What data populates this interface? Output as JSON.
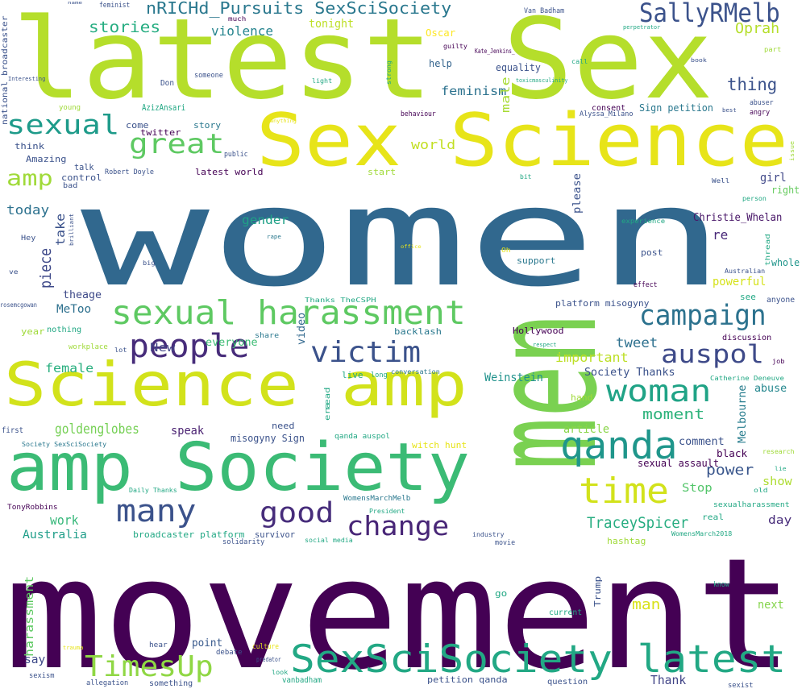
{
  "words": [
    {
      "text": "movement",
      "color": "#440154"
    },
    {
      "text": "women",
      "color": "#31688e"
    },
    {
      "text": "latest Sex",
      "color": "#b5de2b"
    },
    {
      "text": "men",
      "color": "#7ad151"
    },
    {
      "text": "Sex Science",
      "color": "#e7e419"
    },
    {
      "text": "amp Society",
      "color": "#3bbb75"
    },
    {
      "text": "Science amp",
      "color": "#d2e21b"
    },
    {
      "text": "SexSciSociety latest",
      "color": "#22a884"
    },
    {
      "text": "sexual harassment",
      "color": "#5ec962"
    },
    {
      "text": "people",
      "color": "#472c7a"
    },
    {
      "text": "victim",
      "color": "#3b528b"
    },
    {
      "text": "qanda",
      "color": "#1f968b"
    },
    {
      "text": "time",
      "color": "#d2e21b"
    },
    {
      "text": "woman",
      "color": "#20a386"
    },
    {
      "text": "campaign",
      "color": "#2c728e"
    },
    {
      "text": "auspol",
      "color": "#3e4a89"
    },
    {
      "text": "many",
      "color": "#3b528b"
    },
    {
      "text": "good",
      "color": "#472d7b"
    },
    {
      "text": "change",
      "color": "#482677"
    },
    {
      "text": "TimesUp",
      "color": "#8fd744"
    },
    {
      "text": "sexual",
      "color": "#1e9b8a"
    },
    {
      "text": "great",
      "color": "#5ec962"
    },
    {
      "text": "SallyRMelb",
      "color": "#3b528b"
    },
    {
      "text": "nRICHd_Pursuits SexSciSociety",
      "color": "#2a788e"
    },
    {
      "text": "amp",
      "color": "#a0da39"
    },
    {
      "text": "stories",
      "color": "#26ad81"
    },
    {
      "text": "violence",
      "color": "#25848e"
    },
    {
      "text": "Oprah",
      "color": "#b5de2b"
    },
    {
      "text": "thing",
      "color": "#3b528b"
    },
    {
      "text": "feminism",
      "color": "#2c728e"
    },
    {
      "text": "piece",
      "color": "#3e4989"
    },
    {
      "text": "goldenglobes",
      "color": "#75d054"
    },
    {
      "text": "TraceySpicer",
      "color": "#27ad81"
    },
    {
      "text": "tweet",
      "color": "#2d708e"
    },
    {
      "text": "moment",
      "color": "#2eb37c"
    },
    {
      "text": "power",
      "color": "#39568c"
    },
    {
      "text": "world",
      "color": "#c2df23"
    },
    {
      "text": "today",
      "color": "#2c718e"
    },
    {
      "text": "take",
      "color": "#3b528b"
    },
    {
      "text": "gender",
      "color": "#1fa187"
    },
    {
      "text": "re",
      "color": "#482878"
    },
    {
      "text": "female",
      "color": "#29af7f"
    },
    {
      "text": "work",
      "color": "#35b779"
    },
    {
      "text": "Australia",
      "color": "#1f9e89"
    },
    {
      "text": "man",
      "color": "#d8e219"
    },
    {
      "text": "point",
      "color": "#38598c"
    },
    {
      "text": "say",
      "color": "#3e4a89"
    },
    {
      "text": "Thank",
      "color": "#414487"
    },
    {
      "text": "important",
      "color": "#bddf26"
    },
    {
      "text": "Stop",
      "color": "#52c569"
    },
    {
      "text": "show",
      "color": "#addc30"
    },
    {
      "text": "day",
      "color": "#472c7a"
    },
    {
      "text": "next",
      "color": "#84d44b"
    },
    {
      "text": "girl",
      "color": "#3f4788"
    },
    {
      "text": "right",
      "color": "#65cb5e"
    },
    {
      "text": "powerful",
      "color": "#d5e21a"
    },
    {
      "text": "whole",
      "color": "#1f958b"
    },
    {
      "text": "abuse",
      "color": "#24878e"
    },
    {
      "text": "Melbourne",
      "color": "#287d8e"
    },
    {
      "text": "please",
      "color": "#3b528b"
    },
    {
      "text": "harassment",
      "color": "#5ec962"
    },
    {
      "text": "theage",
      "color": "#3e4a89"
    },
    {
      "text": "MeToo",
      "color": "#2d708e"
    },
    {
      "text": "New",
      "color": "#414487"
    },
    {
      "text": "everyone",
      "color": "#3dbc74"
    },
    {
      "text": "male",
      "color": "#a8db34"
    },
    {
      "text": "article",
      "color": "#89d548"
    },
    {
      "text": "speak",
      "color": "#481f70"
    },
    {
      "text": "Weinstein",
      "color": "#20928c"
    },
    {
      "text": "Society Thanks",
      "color": "#3b528b"
    },
    {
      "text": "comment",
      "color": "#3b528b"
    },
    {
      "text": "black",
      "color": "#440154"
    },
    {
      "text": "sexual assault",
      "color": "#440154"
    },
    {
      "text": "Christie_Whelan",
      "color": "#481668"
    },
    {
      "text": "video",
      "color": "#31688e"
    },
    {
      "text": "misogyny Sign",
      "color": "#3b528b"
    },
    {
      "text": "tonight",
      "color": "#bddf26"
    },
    {
      "text": "Oscar",
      "color": "#fde725"
    },
    {
      "text": "help",
      "color": "#33638d"
    },
    {
      "text": "equality",
      "color": "#3b528b"
    },
    {
      "text": "consent",
      "color": "#440154"
    },
    {
      "text": "Sign petition",
      "color": "#2a788e"
    },
    {
      "text": "angry",
      "color": "#440154"
    },
    {
      "text": "abuser",
      "color": "#3b528b"
    },
    {
      "text": "Alyssa_Milano",
      "color": "#3b528b"
    },
    {
      "text": "story",
      "color": "#2a788e"
    },
    {
      "text": "come",
      "color": "#3b528b"
    },
    {
      "text": "twitter",
      "color": "#440154"
    },
    {
      "text": "think",
      "color": "#3b528b"
    },
    {
      "text": "Amazing",
      "color": "#3b528b"
    },
    {
      "text": "talk",
      "color": "#3b528b"
    },
    {
      "text": "control",
      "color": "#3b528b"
    },
    {
      "text": "bad",
      "color": "#3b528b"
    },
    {
      "text": "Robert Doyle",
      "color": "#3b528b"
    },
    {
      "text": "latest world",
      "color": "#440154"
    },
    {
      "text": "start",
      "color": "#a0da39"
    },
    {
      "text": "public",
      "color": "#3b528b"
    },
    {
      "text": "AzizAnsari",
      "color": "#22a884"
    },
    {
      "text": "someone",
      "color": "#3b528b"
    },
    {
      "text": "Don",
      "color": "#3b528b"
    },
    {
      "text": "behaviour",
      "color": "#440154"
    },
    {
      "text": "Kate_Jenkins_",
      "color": "#440154"
    },
    {
      "text": "Van Badham",
      "color": "#3b528b"
    },
    {
      "text": "feminist",
      "color": "#3b528b"
    },
    {
      "text": "much",
      "color": "#440154"
    },
    {
      "text": "guilty",
      "color": "#440154"
    },
    {
      "text": "post",
      "color": "#3b528b"
    },
    {
      "text": "support",
      "color": "#2a788e"
    },
    {
      "text": "effect",
      "color": "#440154"
    },
    {
      "text": "platform misogyny",
      "color": "#3b528b"
    },
    {
      "text": "Hollywood",
      "color": "#440154"
    },
    {
      "text": "backlash",
      "color": "#2a788e"
    },
    {
      "text": "discussion",
      "color": "#440154"
    },
    {
      "text": "anyone",
      "color": "#3b528b"
    },
    {
      "text": "see",
      "color": "#22a884"
    },
    {
      "text": "Australian",
      "color": "#3b528b"
    },
    {
      "text": "job",
      "color": "#440154"
    },
    {
      "text": "hand",
      "color": "#a0da39"
    },
    {
      "text": "Catherine Deneuve",
      "color": "#22a884"
    },
    {
      "text": "live",
      "color": "#22a884"
    },
    {
      "text": "long",
      "color": "#22a884"
    },
    {
      "text": "conversation",
      "color": "#2a788e"
    },
    {
      "text": "year",
      "color": "#a0da39"
    },
    {
      "text": "nothing",
      "color": "#22a884"
    },
    {
      "text": "workplace",
      "color": "#a0da39"
    },
    {
      "text": "lot",
      "color": "#3b528b"
    },
    {
      "text": "share",
      "color": "#2a788e"
    },
    {
      "text": "need",
      "color": "#3b528b"
    },
    {
      "text": "era",
      "color": "#22a884"
    },
    {
      "text": "read",
      "color": "#22a884"
    },
    {
      "text": "qanda auspol",
      "color": "#22a884"
    },
    {
      "text": "witch hunt",
      "color": "#e7e419"
    },
    {
      "text": "first",
      "color": "#3b528b"
    },
    {
      "text": "Society SexSciSociety",
      "color": "#2a788e"
    },
    {
      "text": "Daily Thanks",
      "color": "#22a884"
    },
    {
      "text": "TonyRobbins",
      "color": "#440154"
    },
    {
      "text": "WomensMarchMelb",
      "color": "#2a788e"
    },
    {
      "text": "President",
      "color": "#22a884"
    },
    {
      "text": "broadcaster platform",
      "color": "#22a884"
    },
    {
      "text": "survivor",
      "color": "#3b528b"
    },
    {
      "text": "solidarity",
      "color": "#3b528b"
    },
    {
      "text": "social media",
      "color": "#22a884"
    },
    {
      "text": "industry",
      "color": "#3b528b"
    },
    {
      "text": "movie",
      "color": "#3b528b"
    },
    {
      "text": "hashtag",
      "color": "#a0da39"
    },
    {
      "text": "WomensMarch2018",
      "color": "#22a884"
    },
    {
      "text": "sexualharassment",
      "color": "#22a884"
    },
    {
      "text": "real",
      "color": "#22a884"
    },
    {
      "text": "old",
      "color": "#22a884"
    },
    {
      "text": "research",
      "color": "#a0da39"
    },
    {
      "text": "lie",
      "color": "#22a884"
    },
    {
      "text": "know",
      "color": "#22a884"
    },
    {
      "text": "Trump",
      "color": "#3b528b"
    },
    {
      "text": "go",
      "color": "#22a884"
    },
    {
      "text": "current",
      "color": "#22a884"
    },
    {
      "text": "hear",
      "color": "#3b528b"
    },
    {
      "text": "debate",
      "color": "#3b528b"
    },
    {
      "text": "culture",
      "color": "#e7e419"
    },
    {
      "text": "predator",
      "color": "#3b528b"
    },
    {
      "text": "look",
      "color": "#22a884"
    },
    {
      "text": "vanbadham",
      "color": "#22a884"
    },
    {
      "text": "petition qanda",
      "color": "#3b528b"
    },
    {
      "text": "question",
      "color": "#3b528b"
    },
    {
      "text": "something",
      "color": "#3b528b"
    },
    {
      "text": "allegation",
      "color": "#3b528b"
    },
    {
      "text": "sexism",
      "color": "#3b528b"
    },
    {
      "text": "trauma",
      "color": "#e7e419"
    },
    {
      "text": "sexist",
      "color": "#3b528b"
    },
    {
      "text": "national broadcaster",
      "color": "#3b528b"
    },
    {
      "text": "Interesting",
      "color": "#3b528b"
    },
    {
      "text": "young",
      "color": "#a0da39"
    },
    {
      "text": "Hey",
      "color": "#3b528b"
    },
    {
      "text": "ve",
      "color": "#3b528b"
    },
    {
      "text": "rosemcgowan",
      "color": "#3b528b"
    },
    {
      "text": "brilliant",
      "color": "#3b528b"
    },
    {
      "text": "rape",
      "color": "#2a788e"
    },
    {
      "text": "big",
      "color": "#3b528b"
    },
    {
      "text": "Thanks TheCSPH",
      "color": "#22a884"
    },
    {
      "text": "office",
      "color": "#e7e419"
    },
    {
      "text": "Oh",
      "color": "#e7e419"
    },
    {
      "text": "experience",
      "color": "#22a884"
    },
    {
      "text": "thread",
      "color": "#22a884"
    },
    {
      "text": "person",
      "color": "#22a884"
    },
    {
      "text": "bit",
      "color": "#22a884"
    },
    {
      "text": "Well",
      "color": "#3b528b"
    },
    {
      "text": "issue",
      "color": "#a0da39"
    },
    {
      "text": "best",
      "color": "#3b528b"
    },
    {
      "text": "part",
      "color": "#a0da39"
    },
    {
      "text": "book",
      "color": "#3b528b"
    },
    {
      "text": "perpetrator",
      "color": "#22a884"
    },
    {
      "text": "call",
      "color": "#22a884"
    },
    {
      "text": "toxicmasculinity",
      "color": "#22a884"
    },
    {
      "text": "strong",
      "color": "#22a884"
    },
    {
      "text": "light",
      "color": "#22a884"
    },
    {
      "text": "anything",
      "color": "#e7e419"
    },
    {
      "text": "respect",
      "color": "#22a884"
    },
    {
      "text": "name",
      "color": "#3b528b"
    }
  ]
}
